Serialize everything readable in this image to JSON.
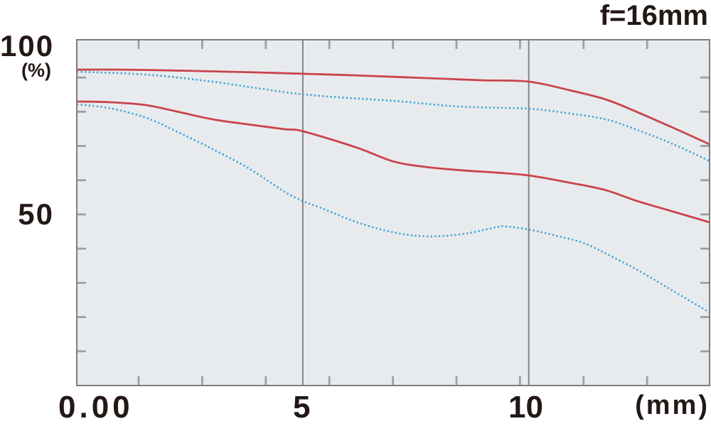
{
  "chart_data": {
    "type": "line",
    "title": "f=16mm",
    "grid": "vertical-gridlines-at-5-and-10",
    "legend": "none",
    "plot_bg_color": "#e8ebee",
    "axis_color": "#7d7d7d",
    "tick_color": "#9aa0a6",
    "gridline_color": "#848484",
    "text_color": "#231815",
    "x_axis": {
      "min": 0,
      "max": 14,
      "unit": "(mm)",
      "tick_labels": [
        "0.00",
        "5",
        "10"
      ],
      "tick_label_positions": [
        0,
        5,
        10
      ],
      "gridlines": [
        5,
        10
      ]
    },
    "y_axis": {
      "min": 0,
      "max": 100,
      "unit": "(%)",
      "tick_labels": [
        "100",
        "50"
      ],
      "tick_label_positions": [
        100,
        50
      ],
      "minor_tick_interval": 10
    },
    "series": [
      {
        "name": "red-solid-upper",
        "style": "solid",
        "color": "#c9444a",
        "x": [
          0,
          1,
          2,
          3,
          4,
          5,
          6,
          7,
          8,
          9,
          10,
          10.9,
          11.7,
          12.4,
          13.2,
          14
        ],
        "y": [
          92.3,
          92.3,
          92.1,
          91.8,
          91.5,
          91.1,
          90.7,
          90.2,
          89.7,
          89.2,
          88.8,
          86.3,
          83.6,
          79.9,
          75.3,
          70.5
        ]
      },
      {
        "name": "blue-dotted-upper",
        "style": "dotted",
        "color": "#45a5d8",
        "x": [
          0,
          1.5,
          3,
          5,
          7,
          8.5,
          10,
          10.9,
          11.7,
          12.4,
          13.2,
          14
        ],
        "y": [
          91.7,
          90.9,
          88.8,
          85.1,
          83.2,
          81.5,
          80.9,
          79.5,
          77.8,
          74.7,
          70.5,
          65.6
        ]
      },
      {
        "name": "red-solid-lower",
        "style": "solid",
        "color": "#c9444a",
        "x": [
          0,
          0.7,
          1.5,
          2.2,
          3,
          3.8,
          4.6,
          5,
          6.2,
          7,
          7.7,
          8.5,
          9.3,
          10,
          10.9,
          11.7,
          12.4,
          13.2,
          14
        ],
        "y": [
          83.0,
          82.8,
          82.0,
          80.1,
          77.8,
          76.3,
          74.9,
          74.3,
          69.5,
          65.5,
          63.9,
          62.9,
          62.2,
          61.4,
          59.3,
          57.1,
          53.9,
          50.8,
          47.7
        ]
      },
      {
        "name": "blue-dotted-lower",
        "style": "dotted",
        "color": "#45a5d8",
        "x": [
          0,
          0.7,
          1.5,
          2.2,
          3,
          3.8,
          4.6,
          5,
          5.4,
          6.2,
          7,
          7.7,
          8.5,
          9.3,
          9.5,
          10,
          10.6,
          11.2,
          11.7,
          12.4,
          13.2,
          14
        ],
        "y": [
          82.2,
          81.1,
          78.4,
          74.3,
          69.1,
          63.5,
          56.6,
          53.9,
          51.9,
          47.7,
          44.8,
          43.6,
          44.2,
          46.3,
          46.5,
          45.6,
          43.8,
          41.7,
          38.6,
          33.8,
          27.6,
          21.4
        ]
      }
    ]
  }
}
